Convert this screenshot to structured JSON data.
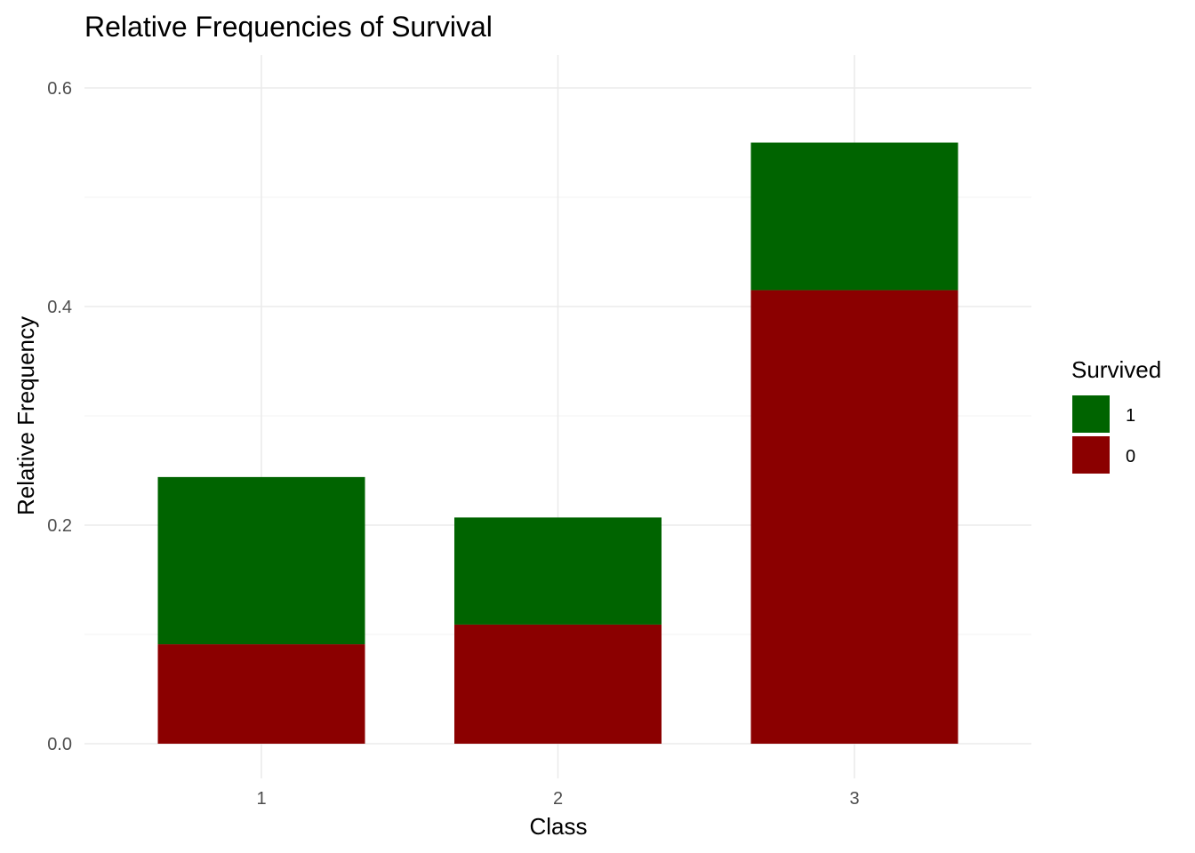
{
  "chart_data": {
    "type": "bar",
    "stacked": true,
    "title": "Relative Frequencies of Survival",
    "xlabel": "Class",
    "ylabel": "Relative Frequency",
    "categories": [
      "1",
      "2",
      "3"
    ],
    "series": [
      {
        "name": "0",
        "color": "#8b0000",
        "values": [
          0.091,
          0.109,
          0.415
        ]
      },
      {
        "name": "1",
        "color": "#006400",
        "values": [
          0.153,
          0.098,
          0.135
        ]
      }
    ],
    "ylim": [
      0,
      0.6
    ],
    "yticks": [
      "0.0",
      "0.2",
      "0.4",
      "0.6"
    ],
    "grid": true,
    "legend": {
      "title": "Survived",
      "position": "right",
      "order": [
        "1",
        "0"
      ]
    }
  }
}
